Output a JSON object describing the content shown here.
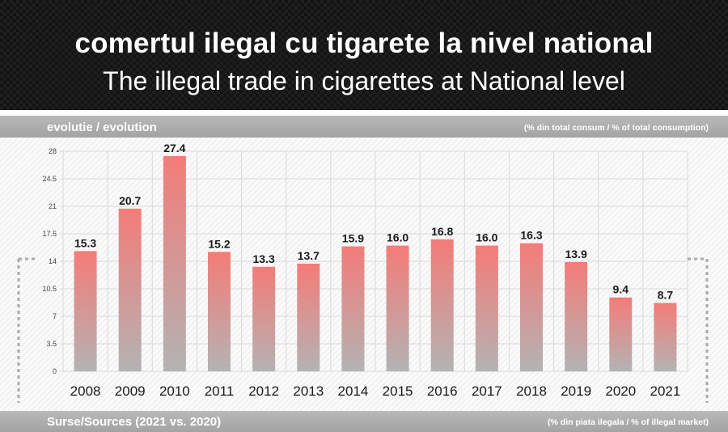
{
  "header": {
    "title_ro": "comertul ilegal cu tigarete la nivel national",
    "title_en": "The illegal trade in cigarettes at National level"
  },
  "top_bar": {
    "left_label": "evolutie / evolution",
    "right_label": "(% din total consum / % of total consumption)"
  },
  "bottom_bar": {
    "left_label": "Surse/Sources (2021 vs. 2020)",
    "right_label": "(% din piata ilegala / % of illegal market)"
  },
  "colors": {
    "bar_top": "#f47c78",
    "bar_bottom": "#b3b3b3",
    "grid": "#d9d9d9",
    "band": "#aaaaaa"
  },
  "chart_data": {
    "type": "bar",
    "categories": [
      "2008",
      "2009",
      "2010",
      "2011",
      "2012",
      "2013",
      "2014",
      "2015",
      "2016",
      "2017",
      "2018",
      "2019",
      "2020",
      "2021"
    ],
    "values": [
      15.3,
      20.7,
      27.4,
      15.2,
      13.3,
      13.7,
      15.9,
      16.0,
      16.8,
      16.0,
      16.3,
      13.9,
      9.4,
      8.7
    ],
    "value_labels": [
      "15.3",
      "20.7",
      "27.4",
      "15.2",
      "13.3",
      "13.7",
      "15.9",
      "16.0",
      "16.8",
      "16.0",
      "16.3",
      "13.9",
      "9.4",
      "8.7"
    ],
    "yticks": [
      0,
      3.5,
      7,
      10.5,
      14,
      17.5,
      21,
      24.5,
      28
    ],
    "ytick_labels": [
      "0",
      "3.5",
      "7",
      "10.5",
      "14",
      "17.5",
      "21",
      "24.5",
      "28"
    ],
    "ylim": [
      0,
      28
    ],
    "grid": true,
    "title": "",
    "xlabel": "",
    "ylabel": ""
  }
}
